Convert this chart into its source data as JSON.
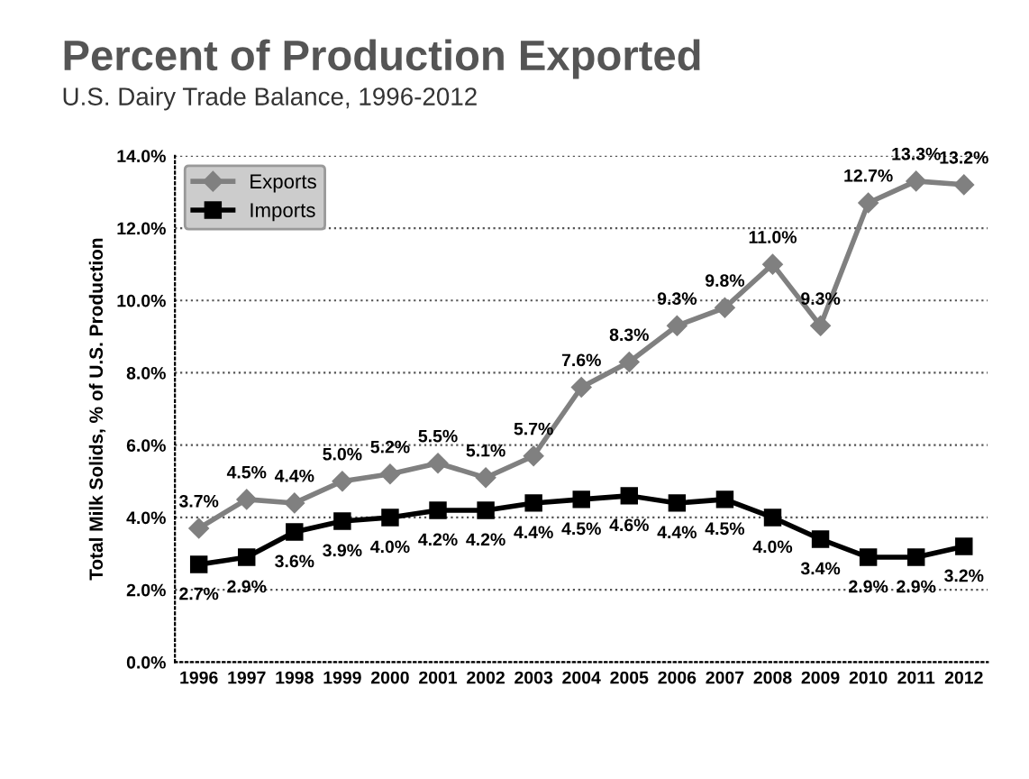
{
  "chart_data": {
    "type": "line",
    "title": "Percent of Production Exported",
    "subtitle": "U.S. Dairy Trade Balance, 1996-2012",
    "ylabel": "Total Milk Solids, % of U.S. Production",
    "categories": [
      "1996",
      "1997",
      "1998",
      "1999",
      "2000",
      "2001",
      "2002",
      "2003",
      "2004",
      "2005",
      "2006",
      "2007",
      "2008",
      "2009",
      "2010",
      "2011",
      "2012"
    ],
    "series": [
      {
        "name": "Exports",
        "color": "#808080",
        "marker": "diamond",
        "values": [
          3.7,
          4.5,
          4.4,
          5.0,
          5.2,
          5.5,
          5.1,
          5.7,
          7.6,
          8.3,
          9.3,
          9.8,
          11.0,
          9.3,
          12.7,
          13.3,
          13.2
        ],
        "value_labels": [
          "3.7%",
          "4.5%",
          "4.4%",
          "5.0%",
          "5.2%",
          "5.5%",
          "5.1%",
          "5.7%",
          "7.6%",
          "8.3%",
          "9.3%",
          "9.8%",
          "11.0%",
          "9.3%",
          "12.7%",
          "13.3%",
          "13.2%"
        ]
      },
      {
        "name": "Imports",
        "color": "#000000",
        "marker": "square",
        "values": [
          2.7,
          2.9,
          3.6,
          3.9,
          4.0,
          4.2,
          4.2,
          4.4,
          4.5,
          4.6,
          4.4,
          4.5,
          4.0,
          3.4,
          2.9,
          2.9,
          3.2
        ],
        "value_labels": [
          "2.7%",
          "2.9%",
          "3.6%",
          "3.9%",
          "4.0%",
          "4.2%",
          "4.2%",
          "4.4%",
          "4.5%",
          "4.6%",
          "4.4%",
          "4.5%",
          "4.0%",
          "3.4%",
          "2.9%",
          "2.9%",
          "3.2%"
        ]
      }
    ],
    "ylim": [
      0,
      14
    ],
    "yticks": [
      {
        "value": 0,
        "label": "0.0%"
      },
      {
        "value": 2,
        "label": "2.0%"
      },
      {
        "value": 4,
        "label": "4.0%"
      },
      {
        "value": 6,
        "label": "6.0%"
      },
      {
        "value": 8,
        "label": "8.0%"
      },
      {
        "value": 10,
        "label": "10.0%"
      },
      {
        "value": 12,
        "label": "12.0%"
      },
      {
        "value": 14,
        "label": "14.0%"
      }
    ],
    "grid": "y",
    "legend": "top left",
    "line_style": "solid"
  }
}
